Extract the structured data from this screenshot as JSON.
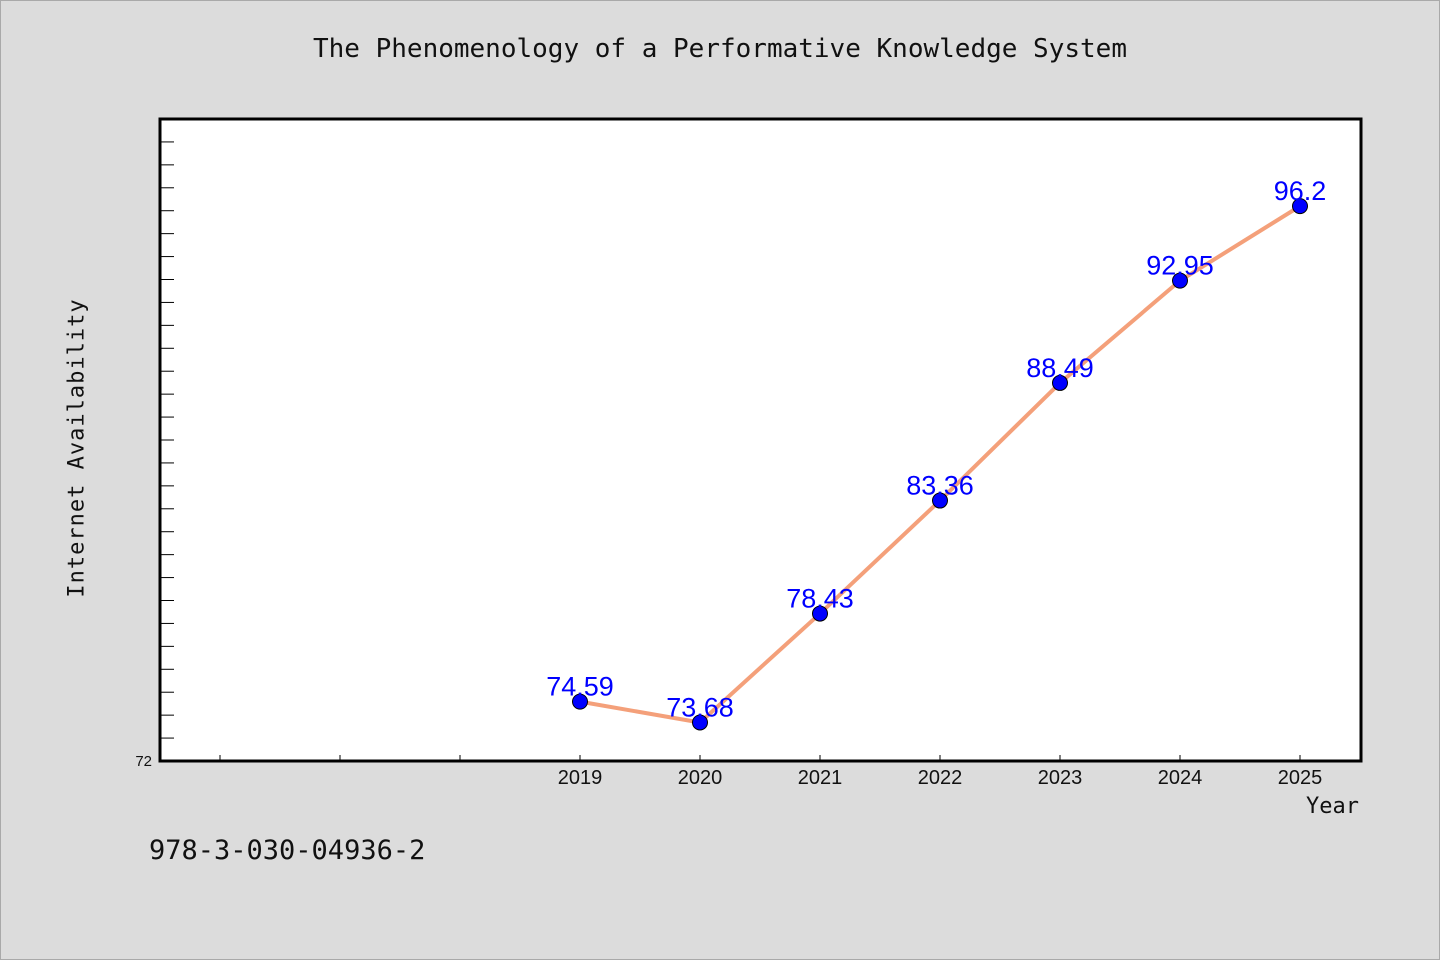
{
  "chart_data": {
    "type": "line",
    "title": "The Phenomenology of a Performative Knowledge System",
    "xlabel": "Year",
    "ylabel": "Internet Availability",
    "x": [
      "2019",
      "2020",
      "2021",
      "2022",
      "2023",
      "2024",
      "2025"
    ],
    "series": [
      {
        "values": [
          74.59,
          73.68,
          78.43,
          83.36,
          88.49,
          92.95,
          96.2
        ],
        "labels": [
          "74.59",
          "73.68",
          "78.43",
          "83.36",
          "88.49",
          "92.95",
          "96.2"
        ]
      }
    ],
    "ylim": [
      72,
      100
    ],
    "y_tick_labels": [
      "72"
    ],
    "y_minor_tick_step": 1,
    "x_slots_before_data": 3,
    "grid": false,
    "line_color": "#f4a07a",
    "marker_color": "#0000ff",
    "label_color": "#0000ff"
  },
  "footer": {
    "note": "978-3-030-04936-2"
  }
}
